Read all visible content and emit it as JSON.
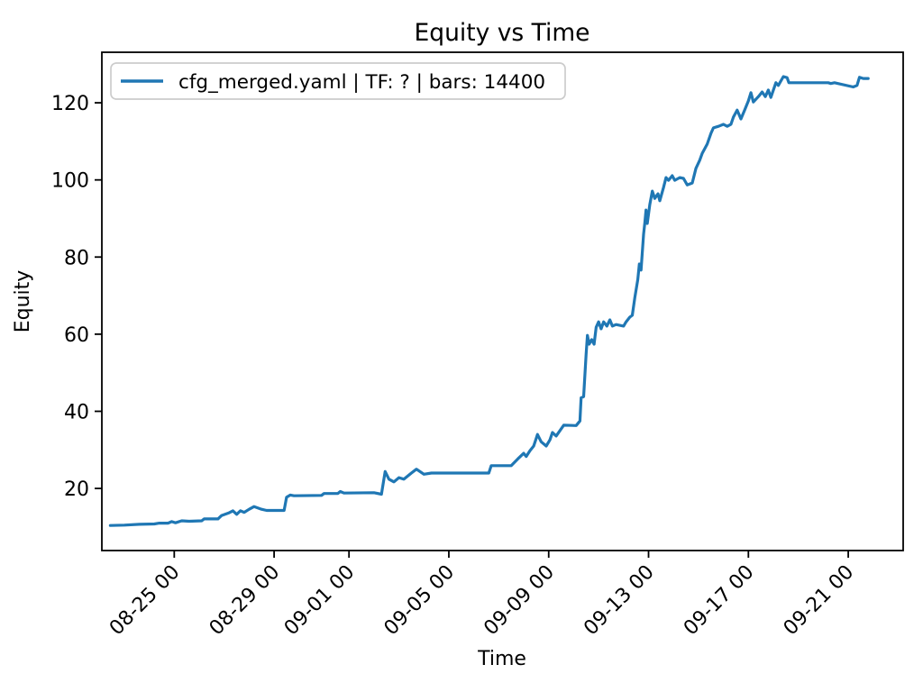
{
  "chart_data": {
    "type": "line",
    "title": "Equity vs Time",
    "xlabel": "Time",
    "ylabel": "Equity",
    "grid": false,
    "legend": {
      "position": "upper left",
      "entries": [
        {
          "label": "cfg_merged.yaml | TF: ? | bars: 14400",
          "color": "#1f77b4"
        }
      ]
    },
    "x_axis": {
      "kind": "datetime",
      "origin": "08-22 00:00",
      "tick_labels": [
        "08-25 00",
        "08-29 00",
        "09-01 00",
        "09-05 00",
        "09-09 00",
        "09-13 00",
        "09-17 00",
        "09-21 00"
      ],
      "tick_positions_days": [
        3,
        7,
        10,
        14,
        18,
        22,
        26,
        30
      ],
      "xlim_days": [
        0.1,
        32.2
      ],
      "label_rotation_deg": 45
    },
    "y_axis": {
      "ticks": [
        20,
        40,
        60,
        80,
        100,
        120
      ],
      "ylim": [
        3.9,
        133.1
      ]
    },
    "series": [
      {
        "name": "cfg_merged.yaml | TF: ? | bars: 14400",
        "color": "#1f77b4",
        "points_days_equity": [
          [
            0.44,
            10.4
          ],
          [
            1.0,
            10.5
          ],
          [
            1.6,
            10.7
          ],
          [
            2.2,
            10.8
          ],
          [
            2.4,
            11.0
          ],
          [
            2.75,
            11.0
          ],
          [
            2.9,
            11.4
          ],
          [
            3.05,
            11.1
          ],
          [
            3.3,
            11.6
          ],
          [
            3.6,
            11.5
          ],
          [
            4.1,
            11.6
          ],
          [
            4.2,
            12.1
          ],
          [
            4.75,
            12.1
          ],
          [
            4.9,
            13.0
          ],
          [
            5.2,
            13.7
          ],
          [
            5.35,
            14.2
          ],
          [
            5.5,
            13.3
          ],
          [
            5.65,
            14.2
          ],
          [
            5.8,
            13.8
          ],
          [
            6.0,
            14.6
          ],
          [
            6.2,
            15.3
          ],
          [
            6.5,
            14.6
          ],
          [
            6.7,
            14.3
          ],
          [
            7.4,
            14.3
          ],
          [
            7.5,
            17.7
          ],
          [
            7.65,
            18.3
          ],
          [
            7.8,
            18.1
          ],
          [
            8.9,
            18.2
          ],
          [
            9.0,
            18.7
          ],
          [
            9.55,
            18.7
          ],
          [
            9.65,
            19.2
          ],
          [
            9.8,
            18.8
          ],
          [
            11.0,
            18.9
          ],
          [
            11.3,
            18.5
          ],
          [
            11.45,
            24.4
          ],
          [
            11.6,
            22.4
          ],
          [
            11.8,
            21.7
          ],
          [
            12.0,
            22.8
          ],
          [
            12.2,
            22.4
          ],
          [
            12.5,
            24.0
          ],
          [
            12.7,
            25.0
          ],
          [
            13.0,
            23.7
          ],
          [
            13.3,
            24.0
          ],
          [
            15.6,
            24.0
          ],
          [
            15.7,
            25.9
          ],
          [
            16.5,
            25.9
          ],
          [
            16.8,
            27.9
          ],
          [
            17.0,
            29.1
          ],
          [
            17.1,
            28.3
          ],
          [
            17.25,
            29.8
          ],
          [
            17.4,
            31.0
          ],
          [
            17.55,
            34.0
          ],
          [
            17.7,
            32.1
          ],
          [
            17.9,
            31.0
          ],
          [
            18.05,
            32.6
          ],
          [
            18.15,
            34.5
          ],
          [
            18.3,
            33.6
          ],
          [
            18.6,
            36.4
          ],
          [
            19.1,
            36.3
          ],
          [
            19.25,
            37.5
          ],
          [
            19.3,
            43.5
          ],
          [
            19.4,
            43.8
          ],
          [
            19.5,
            55.0
          ],
          [
            19.55,
            59.7
          ],
          [
            19.62,
            57.4
          ],
          [
            19.72,
            58.6
          ],
          [
            19.82,
            57.4
          ],
          [
            19.9,
            61.8
          ],
          [
            20.0,
            63.2
          ],
          [
            20.1,
            61.4
          ],
          [
            20.2,
            63.2
          ],
          [
            20.33,
            62.1
          ],
          [
            20.45,
            63.7
          ],
          [
            20.55,
            62.1
          ],
          [
            20.7,
            62.5
          ],
          [
            21.0,
            62.1
          ],
          [
            21.1,
            63.2
          ],
          [
            21.25,
            64.4
          ],
          [
            21.35,
            64.9
          ],
          [
            21.45,
            69.5
          ],
          [
            21.57,
            74.2
          ],
          [
            21.63,
            78.2
          ],
          [
            21.7,
            76.6
          ],
          [
            21.8,
            85.9
          ],
          [
            21.85,
            88.9
          ],
          [
            21.9,
            92.2
          ],
          [
            21.95,
            88.7
          ],
          [
            22.05,
            93.6
          ],
          [
            22.15,
            97.1
          ],
          [
            22.25,
            95.2
          ],
          [
            22.38,
            96.4
          ],
          [
            22.45,
            94.6
          ],
          [
            22.6,
            98.0
          ],
          [
            22.7,
            100.6
          ],
          [
            22.8,
            99.9
          ],
          [
            22.95,
            101.1
          ],
          [
            23.05,
            99.9
          ],
          [
            23.25,
            100.6
          ],
          [
            23.4,
            100.4
          ],
          [
            23.55,
            98.7
          ],
          [
            23.75,
            99.2
          ],
          [
            23.9,
            103.0
          ],
          [
            24.05,
            105.1
          ],
          [
            24.15,
            106.9
          ],
          [
            24.35,
            109.3
          ],
          [
            24.5,
            112.1
          ],
          [
            24.6,
            113.5
          ],
          [
            24.8,
            113.9
          ],
          [
            25.0,
            114.4
          ],
          [
            25.15,
            113.9
          ],
          [
            25.3,
            114.4
          ],
          [
            25.4,
            116.3
          ],
          [
            25.55,
            118.1
          ],
          [
            25.7,
            115.8
          ],
          [
            25.85,
            118.1
          ],
          [
            26.0,
            120.5
          ],
          [
            26.1,
            122.6
          ],
          [
            26.2,
            120.2
          ],
          [
            26.4,
            121.6
          ],
          [
            26.55,
            122.8
          ],
          [
            26.68,
            121.6
          ],
          [
            26.8,
            123.3
          ],
          [
            26.9,
            121.4
          ],
          [
            27.1,
            125.2
          ],
          [
            27.2,
            124.5
          ],
          [
            27.4,
            126.8
          ],
          [
            27.55,
            126.5
          ],
          [
            27.62,
            125.2
          ],
          [
            29.2,
            125.2
          ],
          [
            29.3,
            125.0
          ],
          [
            29.45,
            125.2
          ],
          [
            30.2,
            124.1
          ],
          [
            30.35,
            124.5
          ],
          [
            30.45,
            126.6
          ],
          [
            30.6,
            126.3
          ],
          [
            30.8,
            126.3
          ]
        ]
      }
    ]
  }
}
